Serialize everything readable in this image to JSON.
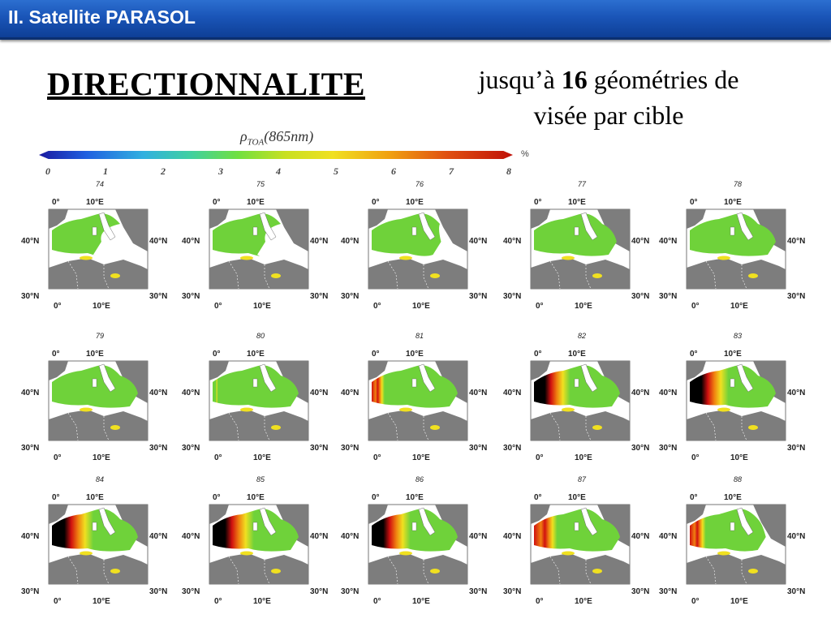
{
  "header": {
    "title": "II. Satellite PARASOL"
  },
  "main_title": "DIRECTIONNALITE",
  "subtitle": {
    "pre": "jusqu’à ",
    "bold": "16",
    "post": " géométries de",
    "line2": "visée par cible"
  },
  "colorbar": {
    "label_rho": "ρ",
    "label_sub": "TOA",
    "label_rest": "(865nm)",
    "unit": "%",
    "ticks": [
      "0",
      "1",
      "2",
      "3",
      "4",
      "5",
      "6",
      "7",
      "8"
    ]
  },
  "map_axis_labels": {
    "lon_west": "0°",
    "lon_east": "10°E",
    "lat_top": "40°N",
    "lat_bottom": "30°N"
  },
  "panels": [
    {
      "id": "74",
      "burn": 0.0,
      "green": 0.45
    },
    {
      "id": "75",
      "burn": 0.0,
      "green": 0.5
    },
    {
      "id": "76",
      "burn": 0.0,
      "green": 0.75
    },
    {
      "id": "77",
      "burn": 0.0,
      "green": 0.95
    },
    {
      "id": "78",
      "burn": 0.0,
      "green": 1.0
    },
    {
      "id": "79",
      "burn": 0.05,
      "green": 1.0
    },
    {
      "id": "80",
      "burn": 0.1,
      "green": 1.0
    },
    {
      "id": "81",
      "burn": 0.25,
      "green": 1.0
    },
    {
      "id": "82",
      "burn": 0.7,
      "green": 1.0
    },
    {
      "id": "83",
      "burn": 0.75,
      "green": 1.0
    },
    {
      "id": "84",
      "burn": 0.8,
      "green": 1.0
    },
    {
      "id": "85",
      "burn": 0.8,
      "green": 1.0
    },
    {
      "id": "86",
      "burn": 0.75,
      "green": 1.0
    },
    {
      "id": "87",
      "burn": 0.45,
      "green": 1.0
    },
    {
      "id": "88",
      "burn": 0.35,
      "green": 0.85
    }
  ],
  "colors": {
    "header_bg": "#1a55b8",
    "land": "#7d7d7d",
    "sea_green": "#6fd23a",
    "sea_yellow": "#f0e020",
    "sea_orange": "#f08010",
    "sea_red": "#d01010",
    "sea_black": "#000000"
  }
}
